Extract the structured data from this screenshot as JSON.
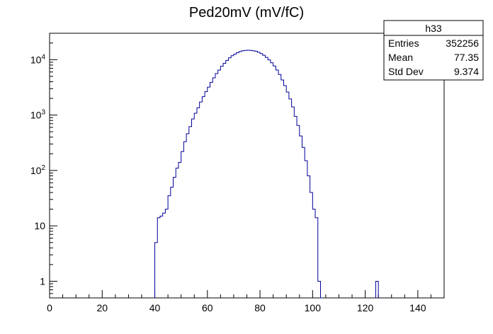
{
  "chart_data": {
    "type": "histogram",
    "title": "Ped20mV (mV/fC)",
    "xlabel": "",
    "ylabel": "",
    "xlim": [
      0,
      150
    ],
    "ylog": true,
    "ylim": [
      0.5,
      30000
    ],
    "grid": false,
    "legend": "top-right",
    "line_color": "#000099",
    "bin_width": 1,
    "x_tick_labels": [
      "0",
      "20",
      "40",
      "60",
      "80",
      "100",
      "120",
      "140"
    ],
    "x_tick_values": [
      0,
      20,
      40,
      60,
      80,
      100,
      120,
      140
    ],
    "y_tick_labels": [
      {
        "value": 1,
        "base": "1",
        "exp": ""
      },
      {
        "value": 10,
        "base": "10",
        "exp": ""
      },
      {
        "value": 100,
        "base": "10",
        "exp": "2"
      },
      {
        "value": 1000,
        "base": "10",
        "exp": "3"
      },
      {
        "value": 10000,
        "base": "10",
        "exp": "4"
      }
    ],
    "bins_start": 40,
    "bin_counts": [
      5,
      14,
      15,
      17,
      20,
      35,
      50,
      75,
      110,
      140,
      220,
      330,
      460,
      620,
      850,
      1080,
      1350,
      1720,
      2150,
      2650,
      3200,
      3900,
      4700,
      5600,
      6500,
      7600,
      8600,
      9700,
      10800,
      11800,
      12600,
      13400,
      14000,
      14500,
      14700,
      14800,
      14700,
      14500,
      14200,
      13600,
      12900,
      12000,
      11000,
      9900,
      8800,
      7700,
      6500,
      5400,
      4300,
      3400,
      2600,
      1950,
      1400,
      950,
      650,
      420,
      260,
      150,
      80,
      40,
      20,
      14,
      1,
      0
    ],
    "isolated_bins": [
      {
        "x": 124,
        "count": 1
      }
    ],
    "stats_box": {
      "name": "h33",
      "rows": [
        {
          "label": "Entries",
          "value": "352256"
        },
        {
          "label": "Mean",
          "value": "77.35"
        },
        {
          "label": "Std Dev",
          "value": "9.374"
        }
      ]
    }
  }
}
